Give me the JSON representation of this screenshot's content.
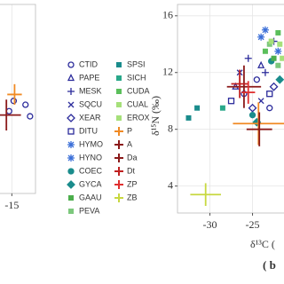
{
  "chart_data": [
    {
      "type": "scatter",
      "xlim": [
        -16.4,
        -12.4
      ],
      "xticks": [
        -15
      ],
      "ylim": [
        2.1,
        16.8
      ],
      "grid": true,
      "series": [
        {
          "color": "#2b2b9b",
          "marker": "circle-open",
          "x": [
            -13.5,
            -14.8,
            -15.3,
            -13.0
          ],
          "y": [
            9.0,
            9.3,
            8.5,
            8.1
          ]
        },
        {
          "color": "#f08a24",
          "marker": "errorbar",
          "x": [
            -14.7
          ],
          "y": [
            9.8
          ],
          "xerr": [
            0.8
          ],
          "yerr": [
            0.8
          ]
        },
        {
          "color": "#8b1a1a",
          "marker": "errorbar",
          "x": [
            -15.6
          ],
          "y": [
            8.2
          ],
          "xerr": [
            1.6
          ],
          "yerr": [
            1.2
          ]
        }
      ]
    },
    {
      "type": "scatter",
      "xlim": [
        -33.8,
        -21.1
      ],
      "xticks": [
        -30,
        -25
      ],
      "ylim": [
        2.1,
        16.8
      ],
      "yticks": [
        4,
        8,
        12,
        16
      ],
      "grid": true,
      "ylabel": "δ¹⁵N (‰)",
      "xlabel": "δ¹³C (",
      "panel_label": "( b",
      "series": [
        {
          "name": "CTID",
          "color": "#2b2b9b",
          "marker": "circle-open",
          "x": [
            -26.0,
            -24.5,
            -23.0
          ],
          "y": [
            10.5,
            11.5,
            9.5
          ]
        },
        {
          "name": "PAPE",
          "color": "#2b2b9b",
          "marker": "triangle-open",
          "x": [
            -27.0,
            -24.0
          ],
          "y": [
            11.0,
            12.5
          ]
        },
        {
          "name": "MESK",
          "color": "#2b2b9b",
          "marker": "plus",
          "x": [
            -25.5,
            -23.5,
            -22.5
          ],
          "y": [
            13.0,
            12.0,
            14.2
          ]
        },
        {
          "name": "SQCU",
          "color": "#2b2b9b",
          "marker": "x",
          "x": [
            -26.5,
            -24.0
          ],
          "y": [
            12.0,
            10.0
          ]
        },
        {
          "name": "XEAR",
          "color": "#2b2b9b",
          "marker": "diamond-open",
          "x": [
            -25.0,
            -22.5
          ],
          "y": [
            9.5,
            11.0
          ]
        },
        {
          "name": "DITU",
          "color": "#2b2b9b",
          "marker": "square-open",
          "x": [
            -27.5,
            -23.0
          ],
          "y": [
            10.0,
            10.5
          ]
        },
        {
          "name": "HYMO",
          "color": "#3b6fd8",
          "marker": "asterisk",
          "x": [
            -24.0,
            -22.0
          ],
          "y": [
            14.5,
            13.5
          ]
        },
        {
          "name": "HYNO",
          "color": "#3b6fd8",
          "marker": "asterisk",
          "x": [
            -23.5
          ],
          "y": [
            15.0
          ]
        },
        {
          "name": "COEC",
          "color": "#1a8c8c",
          "marker": "circle",
          "x": [
            -25.0,
            -22.8
          ],
          "y": [
            9.0,
            12.8
          ]
        },
        {
          "name": "GYCA",
          "color": "#1a8c8c",
          "marker": "diamond",
          "x": [
            -24.5,
            -21.8
          ],
          "y": [
            8.5,
            11.5
          ]
        },
        {
          "name": "GAAU",
          "color": "#4cae4c",
          "marker": "square",
          "x": [
            -22.5
          ],
          "y": [
            13.0
          ]
        },
        {
          "name": "PEVA",
          "color": "#7cc87c",
          "marker": "square",
          "x": [
            -23.0,
            -22.0
          ],
          "y": [
            14.0,
            12.5
          ]
        },
        {
          "name": "SPSI",
          "color": "#1a8c8c",
          "marker": "square",
          "x": [
            -32.5,
            -31.5
          ],
          "y": [
            8.8,
            9.5
          ]
        },
        {
          "name": "SICH",
          "color": "#2aa88a",
          "marker": "square",
          "x": [
            -28.5
          ],
          "y": [
            9.5
          ]
        },
        {
          "name": "CUDA",
          "color": "#5bbf5b",
          "marker": "square",
          "x": [
            -23.5,
            -22.0
          ],
          "y": [
            13.5,
            14.8
          ]
        },
        {
          "name": "CUAL",
          "color": "#a6e07a",
          "marker": "square",
          "x": [
            -22.8,
            -21.5
          ],
          "y": [
            14.2,
            13.0
          ]
        },
        {
          "name": "EROX",
          "color": "#a6e07a",
          "marker": "square",
          "x": [
            -21.8
          ],
          "y": [
            14.0
          ]
        },
        {
          "name": "P",
          "color": "#f08a24",
          "marker": "errorbar",
          "x": [
            -24.3
          ],
          "y": [
            8.4
          ],
          "xerr": [
            3.0
          ],
          "yerr": [
            1.5
          ]
        },
        {
          "name": "A",
          "color": "#8b1a1a",
          "marker": "errorbar",
          "x": [
            -26.0
          ],
          "y": [
            11.0
          ],
          "xerr": [
            2.0
          ],
          "yerr": [
            1.5
          ]
        },
        {
          "name": "Da",
          "color": "#8b1a1a",
          "marker": "errorbar",
          "x": [
            -24.2
          ],
          "y": [
            8.0
          ],
          "xerr": [
            1.5
          ],
          "yerr": [
            1.2
          ]
        },
        {
          "name": "Dt",
          "color": "#c02020",
          "marker": "errorbar",
          "x": [
            -26.5
          ],
          "y": [
            11.2
          ],
          "xerr": [
            1.0
          ],
          "yerr": [
            1.0
          ]
        },
        {
          "name": "ZP",
          "color": "#e03030",
          "marker": "errorbar",
          "x": [
            -25.5
          ],
          "y": [
            10.6
          ],
          "xerr": [
            0.8
          ],
          "yerr": [
            0.8
          ]
        },
        {
          "name": "ZB",
          "color": "#c8d840",
          "marker": "errorbar",
          "x": [
            -30.5
          ],
          "y": [
            3.4
          ],
          "xerr": [
            1.8
          ],
          "yerr": [
            0.8
          ]
        }
      ]
    }
  ]
}
